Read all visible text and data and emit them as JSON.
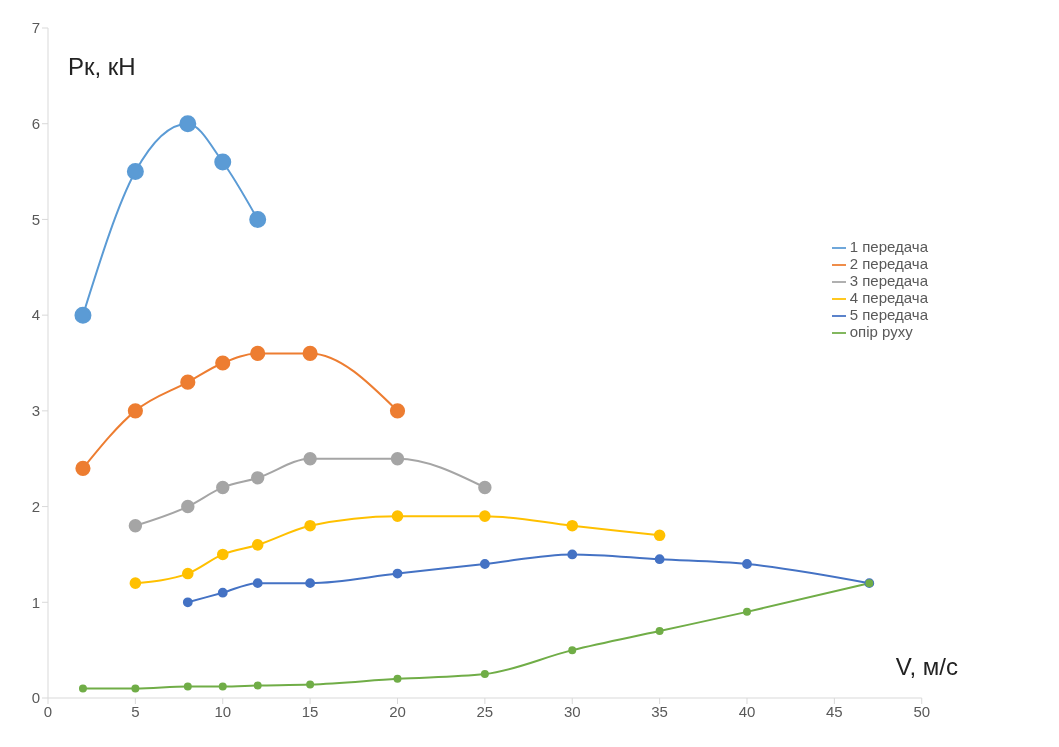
{
  "chart_data": {
    "type": "line",
    "xlabel": "V, м/с",
    "ylabel": "Pк, кН",
    "xlim": [
      0,
      50
    ],
    "xticks": [
      0,
      5,
      10,
      15,
      20,
      25,
      30,
      35,
      40,
      45,
      50
    ],
    "ylim": [
      0,
      7
    ],
    "yticks": [
      0,
      1,
      2,
      3,
      4,
      5,
      6,
      7
    ],
    "grid": false,
    "legend": "right",
    "marker": "circle",
    "line_style": "solid",
    "series": [
      {
        "name": "1 передача",
        "color": "#5b9bd5",
        "x": [
          2,
          5,
          8,
          10,
          12
        ],
        "values": [
          4,
          5.5,
          6,
          5.6,
          5
        ]
      },
      {
        "name": "2 передача",
        "color": "#ed7d31",
        "x": [
          2,
          5,
          8,
          10,
          12,
          15,
          20
        ],
        "values": [
          2.4,
          3,
          3.3,
          3.5,
          3.6,
          3.6,
          3
        ]
      },
      {
        "name": "3 передача",
        "color": "#a5a5a5",
        "x": [
          5,
          8,
          10,
          12,
          15,
          20,
          25
        ],
        "values": [
          1.8,
          2,
          2.2,
          2.3,
          2.5,
          2.5,
          2.2
        ]
      },
      {
        "name": "4 передача",
        "color": "#ffc000",
        "x": [
          5,
          8,
          10,
          12,
          15,
          20,
          25,
          30,
          35
        ],
        "values": [
          1.2,
          1.3,
          1.5,
          1.6,
          1.8,
          1.9,
          1.9,
          1.8,
          1.7
        ]
      },
      {
        "name": "5 передача",
        "color": "#4472c4",
        "x": [
          8,
          10,
          12,
          15,
          20,
          25,
          30,
          35,
          40,
          47
        ],
        "values": [
          1,
          1.1,
          1.2,
          1.2,
          1.3,
          1.4,
          1.5,
          1.45,
          1.4,
          1.2
        ]
      },
      {
        "name": "опір руху",
        "color": "#70ad47",
        "x": [
          2,
          5,
          8,
          10,
          12,
          15,
          20,
          25,
          30,
          35,
          40,
          47
        ],
        "values": [
          0.1,
          0.1,
          0.12,
          0.12,
          0.13,
          0.14,
          0.2,
          0.25,
          0.5,
          0.7,
          0.9,
          1.2
        ]
      }
    ]
  }
}
